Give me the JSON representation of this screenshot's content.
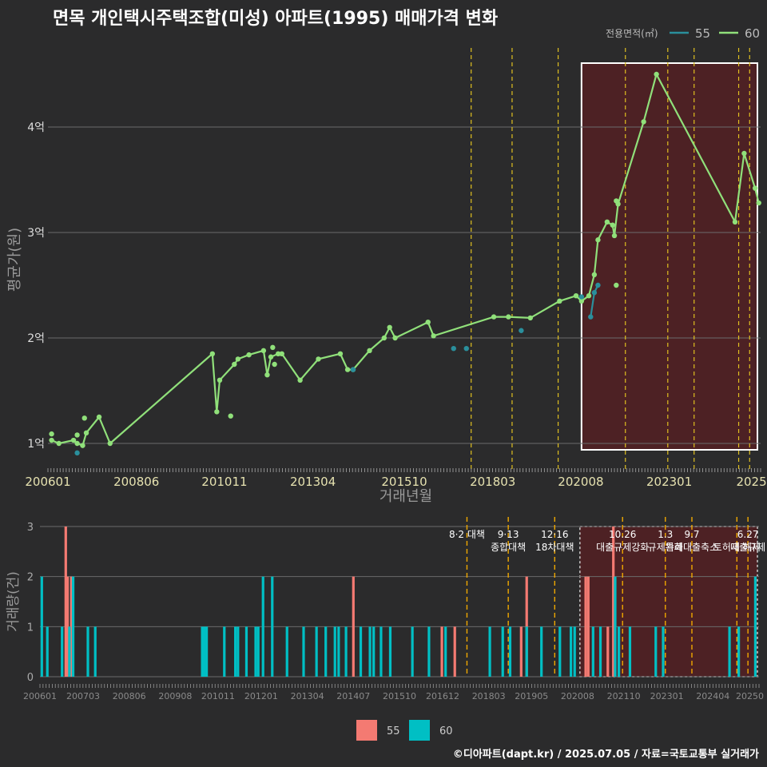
{
  "title": "면목 개인택시주택조합(미성) 아파트(1995) 매매가격 변화",
  "footer": "©디아파트(dapt.kr) / 2025.07.05 / 자료=국토교통부 실거래가",
  "colors": {
    "s55": "#2a8f9c",
    "s60": "#90e07a",
    "bar55": "#f47a72",
    "bar60": "#00bfc4",
    "policy": "#e0c020",
    "policy_bottom": "#f0a800",
    "highlight": "#5a1f22",
    "grid": "#6b6b6b",
    "text": "#dddddd",
    "axis_title": "#9a9a9a"
  },
  "chart_data": [
    {
      "type": "line",
      "title": "면목 개인택시주택조합(미성) 아파트(1995) 매매가격 변화",
      "xlabel": "거래년월",
      "ylabel": "평균가(원)",
      "xlim": [
        2006.0,
        2025.5
      ],
      "ylim": [
        0.75,
        4.75
      ],
      "yticks": [
        {
          "v": 1,
          "label": "1억"
        },
        {
          "v": 2,
          "label": "2억"
        },
        {
          "v": 3,
          "label": "3억"
        },
        {
          "v": 4,
          "label": "4억"
        }
      ],
      "xticks": [
        {
          "v": 2006.0,
          "label": "200601"
        },
        {
          "v": 2008.42,
          "label": "200806"
        },
        {
          "v": 2010.83,
          "label": "201011"
        },
        {
          "v": 2013.25,
          "label": "201304"
        },
        {
          "v": 2015.75,
          "label": "201510"
        },
        {
          "v": 2018.17,
          "label": "201803"
        },
        {
          "v": 2020.58,
          "label": "202008"
        },
        {
          "v": 2023.0,
          "label": "202301"
        },
        {
          "v": 2025.25,
          "label": "2025"
        }
      ],
      "legend": {
        "title": "전용면적(㎡)",
        "position": "top-right",
        "entries": [
          "55",
          "60"
        ]
      },
      "policy_lines": [
        2017.58,
        2018.7,
        2019.96,
        2021.8,
        2022.96,
        2023.68,
        2024.9,
        2025.2
      ],
      "highlight_range": [
        2020.6,
        2025.5
      ],
      "series": [
        {
          "name": "60",
          "line": [
            [
              2006.1,
              1.03
            ],
            [
              2006.3,
              1.0
            ],
            [
              2006.7,
              1.03
            ],
            [
              2006.8,
              1.0
            ],
            [
              2006.95,
              0.98
            ],
            [
              2007.05,
              1.1
            ],
            [
              2007.4,
              1.25
            ],
            [
              2007.7,
              1.0
            ],
            [
              2010.5,
              1.85
            ],
            [
              2010.62,
              1.3
            ],
            [
              2010.7,
              1.6
            ],
            [
              2011.1,
              1.75
            ],
            [
              2011.2,
              1.8
            ],
            [
              2011.5,
              1.84
            ],
            [
              2011.9,
              1.88
            ],
            [
              2012.0,
              1.65
            ],
            [
              2012.1,
              1.82
            ],
            [
              2012.3,
              1.85
            ],
            [
              2012.4,
              1.85
            ],
            [
              2012.9,
              1.6
            ],
            [
              2013.4,
              1.8
            ],
            [
              2014.0,
              1.85
            ],
            [
              2014.2,
              1.7
            ],
            [
              2014.35,
              1.7
            ],
            [
              2014.8,
              1.88
            ],
            [
              2015.2,
              2.0
            ],
            [
              2015.35,
              2.1
            ],
            [
              2015.5,
              2.0
            ],
            [
              2016.4,
              2.15
            ],
            [
              2016.55,
              2.02
            ],
            [
              2018.2,
              2.2
            ],
            [
              2018.6,
              2.2
            ],
            [
              2019.2,
              2.19
            ],
            [
              2020.0,
              2.35
            ],
            [
              2020.45,
              2.4
            ],
            [
              2020.6,
              2.35
            ],
            [
              2020.8,
              2.4
            ],
            [
              2020.95,
              2.6
            ],
            [
              2021.05,
              2.93
            ],
            [
              2021.3,
              3.1
            ],
            [
              2021.45,
              3.07
            ],
            [
              2021.5,
              2.97
            ],
            [
              2021.6,
              3.27
            ],
            [
              2022.3,
              4.05
            ],
            [
              2022.65,
              4.5
            ],
            [
              2024.8,
              3.1
            ],
            [
              2025.05,
              3.75
            ],
            [
              2025.35,
              3.42
            ],
            [
              2025.45,
              3.28
            ]
          ],
          "extra_points": [
            [
              2006.1,
              1.09
            ],
            [
              2006.8,
              1.08
            ],
            [
              2007.0,
              1.24
            ],
            [
              2011.0,
              1.26
            ],
            [
              2012.15,
              1.91
            ],
            [
              2012.2,
              1.75
            ],
            [
              2021.55,
              3.3
            ],
            [
              2021.55,
              2.5
            ]
          ]
        },
        {
          "name": "55",
          "line": [
            [
              2020.85,
              2.2
            ],
            [
              2020.95,
              2.43
            ],
            [
              2021.05,
              2.5
            ]
          ],
          "extra_points": [
            [
              2006.8,
              0.91
            ],
            [
              2014.35,
              1.7
            ],
            [
              2017.1,
              1.9
            ],
            [
              2017.45,
              1.9
            ],
            [
              2018.95,
              2.07
            ],
            [
              2020.6,
              2.39
            ]
          ]
        }
      ]
    },
    {
      "type": "bar",
      "xlabel": "",
      "ylabel": "거래량(건)",
      "xlim": [
        2006.0,
        2025.5
      ],
      "ylim": [
        0,
        3
      ],
      "yticks": [
        0,
        1,
        2,
        3
      ],
      "xticks": [
        {
          "v": 2006.0,
          "label": "200601"
        },
        {
          "v": 2007.17,
          "label": "200703"
        },
        {
          "v": 2008.42,
          "label": "200806"
        },
        {
          "v": 2009.67,
          "label": "200908"
        },
        {
          "v": 2010.83,
          "label": "201011"
        },
        {
          "v": 2012.0,
          "label": "201201"
        },
        {
          "v": 2013.25,
          "label": "201304"
        },
        {
          "v": 2014.5,
          "label": "201407"
        },
        {
          "v": 2015.75,
          "label": "201510"
        },
        {
          "v": 2016.92,
          "label": "201612"
        },
        {
          "v": 2018.17,
          "label": "201803"
        },
        {
          "v": 2019.33,
          "label": "201905"
        },
        {
          "v": 2020.58,
          "label": "202008"
        },
        {
          "v": 2021.83,
          "label": "202110"
        },
        {
          "v": 2023.0,
          "label": "202301"
        },
        {
          "v": 2024.25,
          "label": "202404"
        },
        {
          "v": 2025.25,
          "label": "20250"
        }
      ],
      "legend": {
        "position": "bottom",
        "entries": [
          "55",
          "60"
        ]
      },
      "policy_lines": [
        2017.58,
        2018.7,
        2019.96,
        2021.8,
        2022.96,
        2023.68,
        2024.9,
        2025.2
      ],
      "highlight_range": [
        2020.6,
        2025.5
      ],
      "annotations": [
        {
          "x": 2017.58,
          "lines": [
            "8·2 대책"
          ]
        },
        {
          "x": 2018.7,
          "lines": [
            "9·13",
            "종합대책"
          ]
        },
        {
          "x": 2019.96,
          "lines": [
            "12·16",
            "18차대책"
          ]
        },
        {
          "x": 2021.8,
          "lines": [
            "10.26",
            "대출규제강화"
          ]
        },
        {
          "x": 2022.96,
          "lines": [
            "1.3",
            "규제완화"
          ]
        },
        {
          "x": 2023.68,
          "lines": [
            "9.7",
            "특례대출축소"
          ]
        },
        {
          "x": 2024.9,
          "lines": [
            "",
            "토허제 해제"
          ]
        },
        {
          "x": 2025.2,
          "lines": [
            "6.27",
            "대출규제"
          ]
        }
      ],
      "series": [
        {
          "name": "55",
          "bars": [
            [
              2006.7,
              3
            ],
            [
              2006.75,
              2
            ],
            [
              2006.85,
              2
            ],
            [
              2014.5,
              2
            ],
            [
              2016.9,
              1
            ],
            [
              2017.25,
              1
            ],
            [
              2019.05,
              1
            ],
            [
              2019.2,
              2
            ],
            [
              2020.8,
              2
            ],
            [
              2020.87,
              2
            ],
            [
              2021.4,
              1
            ],
            [
              2021.55,
              3
            ]
          ]
        },
        {
          "name": "60",
          "bars": [
            [
              2006.05,
              2
            ],
            [
              2006.2,
              1
            ],
            [
              2006.6,
              1
            ],
            [
              2006.8,
              1
            ],
            [
              2006.9,
              2
            ],
            [
              2007.3,
              1
            ],
            [
              2007.5,
              1
            ],
            [
              2010.4,
              1
            ],
            [
              2010.46,
              1
            ],
            [
              2010.52,
              1
            ],
            [
              2011.0,
              1
            ],
            [
              2011.3,
              1
            ],
            [
              2011.37,
              1
            ],
            [
              2011.6,
              1
            ],
            [
              2011.85,
              1
            ],
            [
              2011.92,
              1
            ],
            [
              2012.05,
              2
            ],
            [
              2012.3,
              2
            ],
            [
              2012.7,
              1
            ],
            [
              2013.15,
              1
            ],
            [
              2013.5,
              1
            ],
            [
              2013.75,
              1
            ],
            [
              2014.0,
              1
            ],
            [
              2014.1,
              1
            ],
            [
              2014.3,
              1
            ],
            [
              2014.7,
              1
            ],
            [
              2014.95,
              1
            ],
            [
              2015.05,
              1
            ],
            [
              2015.25,
              1
            ],
            [
              2015.5,
              1
            ],
            [
              2016.1,
              1
            ],
            [
              2016.55,
              1
            ],
            [
              2017.0,
              1
            ],
            [
              2018.2,
              1
            ],
            [
              2018.55,
              1
            ],
            [
              2018.75,
              1
            ],
            [
              2019.2,
              1
            ],
            [
              2019.6,
              1
            ],
            [
              2020.1,
              1
            ],
            [
              2020.4,
              1
            ],
            [
              2020.5,
              1
            ],
            [
              2021.0,
              1
            ],
            [
              2021.2,
              1
            ],
            [
              2021.6,
              2
            ],
            [
              2021.7,
              1
            ],
            [
              2022.0,
              1
            ],
            [
              2022.7,
              1
            ],
            [
              2022.9,
              1
            ],
            [
              2024.7,
              1
            ],
            [
              2024.95,
              1
            ],
            [
              2025.4,
              2
            ]
          ]
        }
      ]
    }
  ]
}
